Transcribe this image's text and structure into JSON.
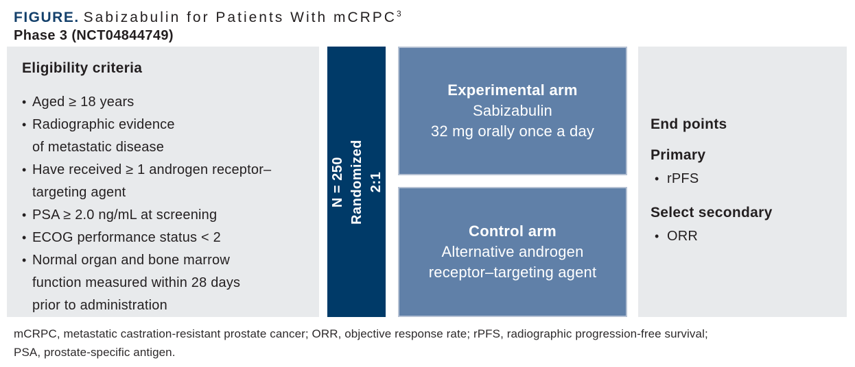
{
  "header": {
    "figure_label": "FIGURE.",
    "title": "Sabizabulin for Patients With mCRPC",
    "title_superscript": "3",
    "subtitle": "Phase 3 (NCT04844749)"
  },
  "eligibility": {
    "heading": "Eligibility criteria",
    "bullet_glyph": "•",
    "items": [
      "Aged ≥ 18 years",
      "Radiographic evidence\nof metastatic disease",
      "Have received ≥ 1 androgen receptor–\ntargeting agent",
      "PSA ≥ 2.0 ng/mL at screening",
      "ECOG performance status < 2",
      "Normal organ and bone marrow\nfunction measured within 28 days\nprior to administration"
    ]
  },
  "randomization": {
    "label": "N = 250\nRandomized 2:1"
  },
  "arms": {
    "experimental": {
      "title": "Experimental arm",
      "description": "Sabizabulin\n32 mg orally once a day"
    },
    "control": {
      "title": "Control arm",
      "description": "Alternative androgen\nreceptor–targeting agent"
    }
  },
  "endpoints": {
    "heading": "End points",
    "primary_heading": "Primary",
    "primary_items": [
      "rPFS"
    ],
    "secondary_heading": "Select secondary",
    "secondary_items": [
      "ORR"
    ]
  },
  "footnote": "mCRPC, metastatic castration-resistant prostate cancer; ORR, objective response rate; rPFS, radiographic progression-free survival;\nPSA, prostate-specific antigen.",
  "colors": {
    "title_navy": "#14406b",
    "randomization_bar_navy": "#003a68",
    "arm_box_blue": "#6080a8",
    "arm_box_border": "#b5c1d3",
    "panel_gray": "#e8eaec",
    "text_black": "#231f20",
    "arm_text_white": "#ffffff"
  }
}
